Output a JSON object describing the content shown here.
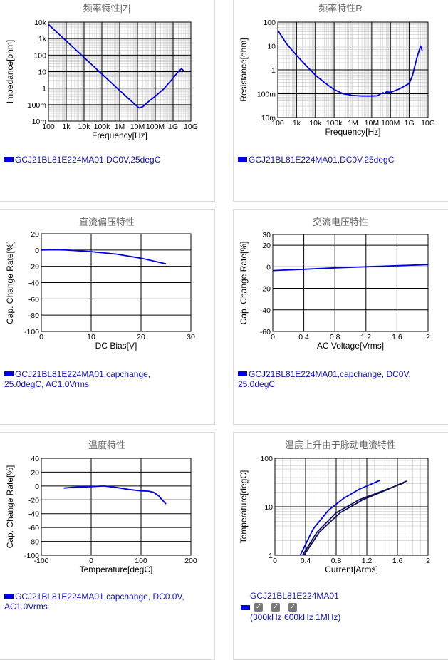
{
  "colors": {
    "series": "#0000e0",
    "series_dark": "#101060",
    "grid": "#c8c8c8",
    "legend_text": "#1010d0"
  },
  "chart_data": [
    {
      "type": "line",
      "title": "频率特性|Z|",
      "xlabel": "Frequency[Hz]",
      "ylabel": "Impedance[ohm]",
      "xscale": "log",
      "yscale": "log",
      "xlim": [
        100,
        10000000000
      ],
      "ylim": [
        0.01,
        10000
      ],
      "xticks": [
        100,
        1000,
        10000,
        100000,
        1000000,
        10000000,
        100000000,
        1000000000,
        10000000000
      ],
      "xticklabels": [
        "100",
        "1k",
        "10k",
        "100k",
        "1M",
        "10M",
        "100M",
        "1G",
        "10G"
      ],
      "yticks": [
        0.01,
        0.1,
        1,
        10,
        100,
        1000,
        10000
      ],
      "yticklabels": [
        "10m",
        "100m",
        "1",
        "10",
        "100",
        "1k",
        "10k"
      ],
      "legend": "GCJ21BL81E224MA01,DC0V,25degC",
      "series": [
        {
          "x": [
            100,
            1000,
            10000,
            100000,
            1000000,
            10000000,
            13000000,
            20000000,
            40000000,
            100000000,
            300000000,
            1000000000,
            2000000000,
            3000000000,
            4000000000
          ],
          "y": [
            7200,
            720,
            72,
            7.2,
            0.72,
            0.075,
            0.062,
            0.075,
            0.15,
            0.32,
            0.9,
            4.0,
            10.5,
            15,
            11
          ]
        }
      ]
    },
    {
      "type": "line",
      "title": "频率特性R",
      "xlabel": "Frequency[Hz]",
      "ylabel": "Resistance[ohm]",
      "xscale": "log",
      "yscale": "log",
      "xlim": [
        100,
        10000000000
      ],
      "ylim": [
        0.01,
        100
      ],
      "xticks": [
        100,
        1000,
        10000,
        100000,
        1000000,
        10000000,
        100000000,
        1000000000,
        10000000000
      ],
      "xticklabels": [
        "100",
        "1k",
        "10k",
        "100k",
        "1M",
        "10M",
        "100M",
        "1G",
        "10G"
      ],
      "yticks": [
        0.01,
        0.1,
        1,
        10,
        100
      ],
      "yticklabels": [
        "10m",
        "100m",
        "1",
        "10",
        "100"
      ],
      "legend": "GCJ21BL81E224MA01,DC0V,25degC",
      "series": [
        {
          "x": [
            100,
            300,
            1000,
            3000,
            10000,
            30000,
            100000,
            300000,
            1000000,
            3000000,
            10000000,
            20000000,
            30000000,
            40000000,
            50000000,
            60000000,
            100000000,
            300000000,
            1000000000,
            1500000000,
            2500000000,
            4000000000,
            5000000000
          ],
          "y": [
            45,
            12,
            4,
            1.6,
            0.6,
            0.3,
            0.15,
            0.1,
            0.085,
            0.08,
            0.08,
            0.082,
            0.1,
            0.11,
            0.1,
            0.12,
            0.115,
            0.16,
            0.27,
            0.6,
            3.0,
            10,
            6
          ]
        }
      ]
    },
    {
      "type": "line",
      "title": "直流偏压特性",
      "xlabel": "DC Bias[V]",
      "ylabel": "Cap. Change Rate[%]",
      "xlim": [
        0,
        30
      ],
      "ylim": [
        -100,
        20
      ],
      "xticks": [
        0,
        10,
        20,
        30
      ],
      "xticklabels": [
        "0",
        "10",
        "20",
        "30"
      ],
      "yticks": [
        -100,
        -80,
        -60,
        -40,
        -20,
        0,
        20
      ],
      "yticklabels": [
        "-100",
        "-80",
        "-60",
        "-40",
        "-20",
        "0",
        "20"
      ],
      "legend": "GCJ21BL81E224MA01,capchange,\n25.0degC, AC1.0Vrms",
      "series": [
        {
          "x": [
            0,
            2.5,
            5,
            10,
            15,
            20,
            25
          ],
          "y": [
            0,
            0.5,
            0,
            -2,
            -5,
            -10,
            -17
          ]
        }
      ]
    },
    {
      "type": "line",
      "title": "交流电压特性",
      "xlabel": "AC Voltage[Vrms]",
      "ylabel": "Cap. Change Rate[%]",
      "xlim": [
        0,
        2
      ],
      "ylim": [
        -60,
        30
      ],
      "xticks": [
        0,
        0.4,
        0.8,
        1.2,
        1.6,
        2
      ],
      "xticklabels": [
        "0",
        "0.4",
        "0.8",
        "1.2",
        "1.6",
        "2"
      ],
      "yticks": [
        -60,
        -40,
        -20,
        0,
        20,
        30
      ],
      "yticklabels": [
        "-60",
        "-40",
        "-20",
        "0",
        "20",
        "30"
      ],
      "legend": "GCJ21BL81E224MA01,capchange, DC0V,\n25.0degC",
      "series": [
        {
          "x": [
            0,
            0.4,
            0.8,
            1.2,
            1.6,
            2
          ],
          "y": [
            -3.5,
            -2.3,
            -1,
            0,
            1,
            2
          ]
        }
      ]
    },
    {
      "type": "line",
      "title": "温度特性",
      "xlabel": "Temperature[degC]",
      "ylabel": "Cap. Change Rate[%]",
      "xlim": [
        -100,
        200
      ],
      "ylim": [
        -100,
        40
      ],
      "xticks": [
        -100,
        0,
        100,
        200
      ],
      "xticklabels": [
        "-100",
        "0",
        "100",
        "200"
      ],
      "yticks": [
        -100,
        -80,
        -60,
        -40,
        -20,
        0,
        20,
        40
      ],
      "yticklabels": [
        "-100",
        "-80",
        "-60",
        "-40",
        "-20",
        "0",
        "20",
        "40"
      ],
      "legend": "GCJ21BL81E224MA01,capchange, DC0.0V,\nAC1.0Vrms",
      "series": [
        {
          "x": [
            -55,
            -40,
            -25,
            0,
            25,
            50,
            75,
            100,
            115,
            125,
            135,
            150
          ],
          "y": [
            -3,
            -2,
            -1.5,
            -1,
            0,
            -2,
            -5,
            -7,
            -7.5,
            -9,
            -14,
            -26
          ]
        }
      ]
    },
    {
      "type": "line",
      "title": "温度上升由于脉动电流特性",
      "xlabel": "Current[Arms]",
      "ylabel": "Temperature[degC]",
      "yscale": "log",
      "xlim": [
        0,
        2
      ],
      "ylim": [
        1,
        100
      ],
      "xticks": [
        0,
        0.4,
        0.8,
        1.2,
        1.6,
        2
      ],
      "xticklabels": [
        "0",
        "0.4",
        "0.8",
        "1.2",
        "1.6",
        "2"
      ],
      "yticks": [
        1,
        10,
        100
      ],
      "yticklabels": [
        "1",
        "10",
        "100"
      ],
      "legend": "GCJ21BL81E224MA01",
      "legend_options": [
        "(300kHz",
        "600kHz",
        "1MHz)"
      ],
      "series": [
        {
          "name": "300kHz",
          "x": [
            0.33,
            0.5,
            0.7,
            0.9,
            1.1,
            1.37
          ],
          "y": [
            1,
            3.5,
            8.5,
            15,
            23,
            35
          ]
        },
        {
          "name": "600kHz",
          "x": [
            0.36,
            0.55,
            0.8,
            1.1,
            1.4,
            1.68
          ],
          "y": [
            1,
            3,
            7.5,
            14,
            21,
            31
          ]
        },
        {
          "name": "1MHz",
          "x": [
            0.38,
            0.58,
            0.85,
            1.15,
            1.45,
            1.72
          ],
          "y": [
            1,
            3,
            7.5,
            14,
            22,
            34
          ]
        }
      ]
    }
  ]
}
